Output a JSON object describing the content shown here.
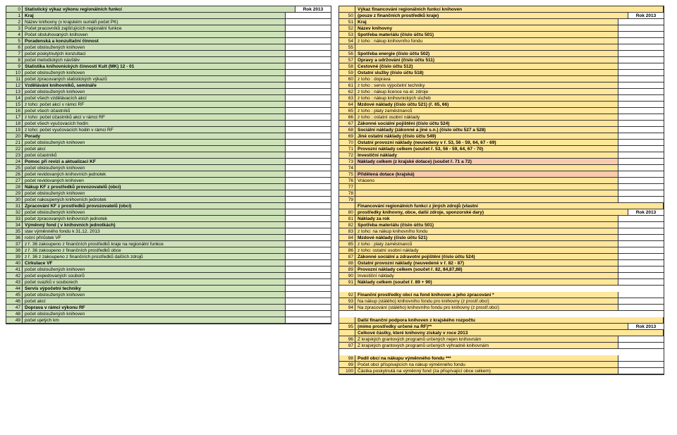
{
  "year_label": "Rok 2013",
  "left": {
    "header_title": "Statistický výkaz výkonu regionálních funkcí",
    "header_year_label": "Rok",
    "header_year_value": "2013",
    "rows": [
      {
        "n": "0",
        "t": "Statistický výkaz výkonu regionálních funkcí",
        "b": true,
        "y": true
      },
      {
        "n": "1",
        "t": "Kraj",
        "b": true
      },
      {
        "n": "2",
        "t": "Název knihovny (v krajském sumáři počet PK)"
      },
      {
        "n": "3",
        "t": "Počet pracovníků zajišťujících regionální funkce"
      },
      {
        "n": "4",
        "t": "Počet obsluhovaných knihoven"
      },
      {
        "n": "5",
        "t": "Poradenská a konzultační činnost",
        "b": true
      },
      {
        "n": "6",
        "t": "  počet obsloužených knihoven"
      },
      {
        "n": "7",
        "t": "  počet poskytnutých konzultací"
      },
      {
        "n": "8",
        "t": "  počet metodických návštěv"
      },
      {
        "n": "9",
        "t": "Statistika knihovnických činností Kult (MK) 12 - 01",
        "b": true
      },
      {
        "n": "10",
        "t": "  počet obsloužených knihoven"
      },
      {
        "n": "11",
        "t": "  počet zpracovaných statistických výkazů"
      },
      {
        "n": "12",
        "t": "Vzdělávání knihovníků, semináře",
        "b": true
      },
      {
        "n": "13",
        "t": "  počet obsloužených knihoven"
      },
      {
        "n": "14",
        "t": "  počet všech vzdělávacích akcí"
      },
      {
        "n": "15",
        "t": "     z toho: počet akcí v rámci RF"
      },
      {
        "n": "16",
        "t": "  počet všech účastníků"
      },
      {
        "n": "17",
        "t": "     z toho: počet účastníků akcí v rámci RF"
      },
      {
        "n": "18",
        "t": "  počet všech vyučovacích hodin"
      },
      {
        "n": "19",
        "t": "     z toho: počet vyučovacích hodin v rámci RF"
      },
      {
        "n": "20",
        "t": "Porady",
        "b": true
      },
      {
        "n": "21",
        "t": "  počet obsloužených knihoven"
      },
      {
        "n": "22",
        "t": "  počet akcí"
      },
      {
        "n": "23",
        "t": "  počet účastníků"
      },
      {
        "n": "24",
        "t": "Pomoc při revizi a aktualizaci KF",
        "b": true
      },
      {
        "n": "25",
        "t": "  počet obsloužených knihoven"
      },
      {
        "n": "26",
        "t": "  počet revidovaných knihovních jednotek"
      },
      {
        "n": "27",
        "t": "  počet revidovaných knihoven"
      },
      {
        "n": "28",
        "t": "Nákup KF z prostředků provozovatelů (obcí)",
        "b": true
      },
      {
        "n": "29",
        "t": "  počet obsloužených knihoven"
      },
      {
        "n": "30",
        "t": "  počet nakoupených knihovních jednotek"
      },
      {
        "n": "31",
        "t": "Zpracování KF z prostředků provozovatelů (obcí)",
        "b": true
      },
      {
        "n": "32",
        "t": "  počet obsloužených knihoven"
      },
      {
        "n": "33",
        "t": "  počet zpracovaných knihovních jednotek"
      },
      {
        "n": "34",
        "t": "Výměnný fond ( v knihovních jednotkách)",
        "b": true
      },
      {
        "n": "35",
        "t": "  stav výměnného fondu k 31.12. 2013"
      },
      {
        "n": "36",
        "t": "  roční přírůstek VF"
      },
      {
        "n": "37",
        "t": "   z ř. 36 zakoupeno  z finančních prostředků kraje na regionální funkce"
      },
      {
        "n": "38",
        "t": "   z ř. 36 zakoupeno z finančních prostředků obce"
      },
      {
        "n": "39",
        "t": "   z ř. 36 z zakoupeno z finančních prostředků dalších zdrojů"
      },
      {
        "n": "40",
        "t": "Cirkulace VF",
        "b": true
      },
      {
        "n": "41",
        "t": "  počet obsloužených knihoven"
      },
      {
        "n": "42",
        "t": "  počet expedovaných souborů"
      },
      {
        "n": "43",
        "t": "  počet svazků v souborech"
      },
      {
        "n": "44",
        "t": "Servis výpočetní techniky",
        "b": true
      },
      {
        "n": "45",
        "t": "  počet obsloužených knihoven"
      },
      {
        "n": "46",
        "t": "  počet akcí "
      },
      {
        "n": "47",
        "t": "Doprava v rámci výkonu RF",
        "b": true
      },
      {
        "n": "48",
        "t": "  počet obsloužených knihoven"
      },
      {
        "n": "49",
        "t": "  počet ujetých km"
      }
    ]
  },
  "right": {
    "rows": [
      {
        "n": "",
        "t": "Výkaz financování regionálních funkcí knihoven",
        "b": true,
        "noval": true
      },
      {
        "n": "50",
        "t": "(pouze z finančních prostředků kraje)",
        "b": true,
        "y": true
      },
      {
        "n": "51",
        "t": "Kraj",
        "b": true
      },
      {
        "n": "52",
        "t": "Název knihovny",
        "b": true
      },
      {
        "n": "53",
        "t": "Spotřeba materiálu (číslo účtu 501) ",
        "b": true
      },
      {
        "n": "54",
        "t": "  z toho : nákup knihovního fondu"
      },
      {
        "n": "55",
        "t": ""
      },
      {
        "n": "56",
        "t": "Spotřeba energie (číslo účtu 502)",
        "b": true
      },
      {
        "n": "57",
        "t": "Opravy a udržování (číslo účtu 511)",
        "b": true
      },
      {
        "n": "58",
        "t": "Cestovné (číslo účtu 512)",
        "b": true
      },
      {
        "n": "59",
        "t": "Ostatní služby (číslo účtu 518)",
        "b": true
      },
      {
        "n": "60",
        "t": "  z toho : doprava"
      },
      {
        "n": "61",
        "t": "  z toho : servis výpočetní techniky"
      },
      {
        "n": "62",
        "t": "  z toho : nákup licence na el. zdroje"
      },
      {
        "n": "63",
        "t": "  z toho : nákup knihovnických služeb"
      },
      {
        "n": "64",
        "t": "Mzdové náklady (číslo účtu 521) (ř. 65, 66)",
        "b": true
      },
      {
        "n": "65",
        "t": "  z toho : platy zaměstnanců"
      },
      {
        "n": "66",
        "t": "  z toho : ostatní osobní náklady"
      },
      {
        "n": "67",
        "t": "Zákonné sociální pojištění (číslo účtu 524)",
        "b": true
      },
      {
        "n": "68",
        "t": "Sociální náklady (zákonné a jiné s.n.) (číslo účtu 527 a 528)",
        "b": true
      },
      {
        "n": "69",
        "t": "Jiné ostatní náklady (číslo účtu 549)",
        "b": true
      },
      {
        "n": "70",
        "t": "Ostatní provozní náklady (neuvedeny v ř.  53, 56 - 59, 64, 67 - 69) ",
        "b": true
      },
      {
        "n": "71",
        "t": "Provozní náklady celkem (součet ř. 53, 56 - 59, 64, 67 - 70)",
        "b": true
      },
      {
        "n": "72",
        "t": "Investiční náklady",
        "b": true
      },
      {
        "n": "73",
        "t": "Náklady celkem (z krajské dotace) (součet ř. 71 a 72)",
        "b": true,
        "pink": true
      },
      {
        "n": "74",
        "t": ""
      },
      {
        "n": "75",
        "t": "Přidělená dotace (krajská) ",
        "b": true,
        "pink": true
      },
      {
        "n": "76",
        "t": "Vráceno"
      },
      {
        "n": "77",
        "t": ""
      },
      {
        "n": "78",
        "t": ""
      },
      {
        "n": "79",
        "t": ""
      },
      {
        "n": "",
        "t": "Financování regionálních funkcí z jiných zdrojů (vlastní",
        "b": true,
        "noval": true
      },
      {
        "n": "80",
        "t": "prostředky knihovny, obce, další zdroje, sponzorské dary)",
        "b": true,
        "y": true
      },
      {
        "n": "81",
        "t": "Náklady za rok",
        "b": true
      },
      {
        "n": "82",
        "t": "Spotřeba materiálu (číslo účtu 501) ",
        "b": true
      },
      {
        "n": "83",
        "t": "  z toho: na nákup knihovního fondu "
      },
      {
        "n": "84",
        "t": "Mzdové náklady (číslo účtu 521) ",
        "b": true
      },
      {
        "n": "85",
        "t": "  z toho : platy zaměstnanců"
      },
      {
        "n": "86",
        "t": "  z toho: ostatní osobní náklady"
      },
      {
        "n": "87",
        "t": "Zákonné sociální a zdravotní pojištění (číslo účtu 524)",
        "b": true
      },
      {
        "n": "88",
        "t": "Ostatní provozní náklady (neuvedené v ř.  82 - 87)",
        "b": true
      },
      {
        "n": "89",
        "t": "Provozní náklady celkem (součet ř.  82, 84,87,88)",
        "b": true
      },
      {
        "n": "90",
        "t": "Investiční náklady"
      },
      {
        "n": "91",
        "t": "Náklady celkem (součet ř.  89 + 90)",
        "b": true
      },
      {
        "n": "",
        "t": "",
        "blank": true
      },
      {
        "n": "92",
        "t": "Finanční prostředky obcí na fond knihoven a jeho zpracování *",
        "b": true
      },
      {
        "n": "93",
        "t": "Na nákup (stálého) knihovního fondu pro  knihovny (z prostř.obcí)"
      },
      {
        "n": "94",
        "t": "Na zpracování (stálého) knihovního fondu pro  knihovny (z prostř.obcí) "
      },
      {
        "n": "",
        "t": "",
        "blank": true
      },
      {
        "n": "",
        "t": "Další finanční podpora knihoven z krajského rozpočtu",
        "b": true,
        "noval": true
      },
      {
        "n": "95",
        "t": "(mimo prostředky určené na RF)**",
        "b": true,
        "y": true
      },
      {
        "n": "",
        "t": "Celkové částky, které knihovny získaly v roce 2013",
        "b": true,
        "noval": true
      },
      {
        "n": "96",
        "t": "Z krajských grantových programů určených nejen knihovnám"
      },
      {
        "n": "97",
        "t": "Z krajských grantových programů určených výhradně knihovnám"
      },
      {
        "n": "",
        "t": "",
        "blank": true
      },
      {
        "n": "98",
        "t": "Podíl  obcí na nákupu výměnného fondu ***",
        "b": true
      },
      {
        "n": "99",
        "t": "Počet obcí příspívajících na nákup výměnného fondu "
      },
      {
        "n": "100",
        "t": "Částka poskytnutá na výměnný fond (za přispívající obce celkem)"
      }
    ]
  }
}
